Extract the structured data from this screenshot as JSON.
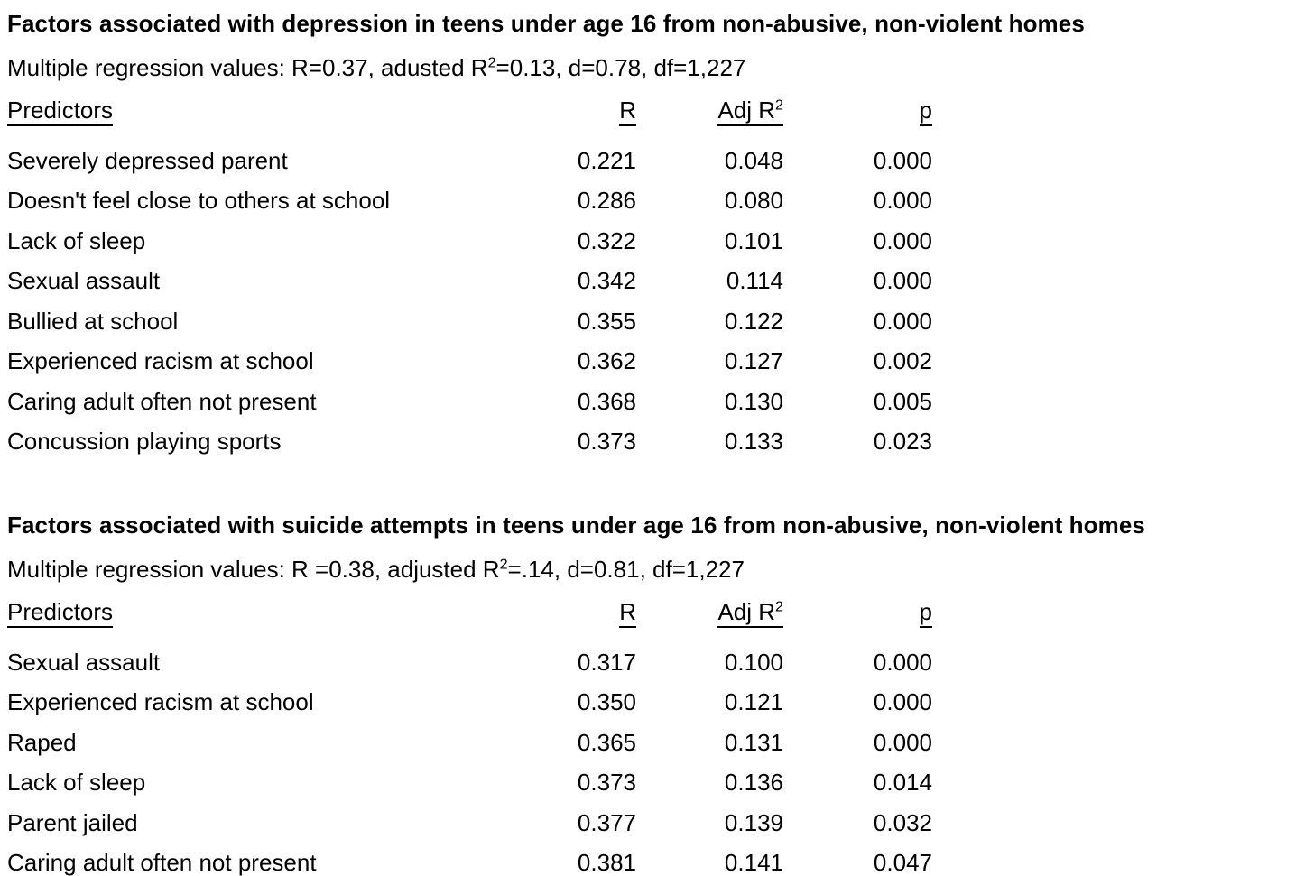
{
  "colors": {
    "background": "#ffffff",
    "text": "#000000"
  },
  "tables": [
    {
      "id": "depression",
      "title": "Factors associated with depression in teens under age 16 from non-abusive, non-violent homes",
      "subtitle": {
        "prefix": "Multiple regression values: R=0.37, adusted R",
        "sup": "2",
        "suffix": "=0.13, d=0.78, df=1,227"
      },
      "columns": {
        "predictors": "Predictors",
        "r": "R",
        "adj_r2_base": "Adj R",
        "adj_r2_sup": "2",
        "p": "p"
      },
      "rows": [
        {
          "predictor": "Severely depressed parent",
          "r": "0.221",
          "adj_r2": "0.048",
          "p": "0.000"
        },
        {
          "predictor": "Doesn't feel close to others at school",
          "r": "0.286",
          "adj_r2": "0.080",
          "p": "0.000"
        },
        {
          "predictor": "Lack of sleep",
          "r": "0.322",
          "adj_r2": "0.101",
          "p": "0.000"
        },
        {
          "predictor": "Sexual assault",
          "r": "0.342",
          "adj_r2": "0.114",
          "p": "0.000"
        },
        {
          "predictor": "Bullied at school",
          "r": "0.355",
          "adj_r2": "0.122",
          "p": "0.000"
        },
        {
          "predictor": "Experienced racism at school",
          "r": "0.362",
          "adj_r2": "0.127",
          "p": "0.002"
        },
        {
          "predictor": "Caring adult often not present",
          "r": "0.368",
          "adj_r2": "0.130",
          "p": "0.005"
        },
        {
          "predictor": "Concussion playing sports",
          "r": "0.373",
          "adj_r2": "0.133",
          "p": "0.023"
        }
      ]
    },
    {
      "id": "suicide-attempts",
      "title": "Factors associated with suicide attempts in teens under age 16 from non-abusive, non-violent homes",
      "subtitle": {
        "prefix": "Multiple regression values: R =0.38, adjusted R",
        "sup": "2",
        "suffix": "=.14, d=0.81, df=1,227"
      },
      "columns": {
        "predictors": "Predictors",
        "r": "R",
        "adj_r2_base": "Adj R",
        "adj_r2_sup": "2",
        "p": "p"
      },
      "rows": [
        {
          "predictor": "Sexual assault",
          "r": "0.317",
          "adj_r2": "0.100",
          "p": "0.000"
        },
        {
          "predictor": "Experienced racism at school",
          "r": "0.350",
          "adj_r2": "0.121",
          "p": "0.000"
        },
        {
          "predictor": "Raped",
          "r": "0.365",
          "adj_r2": "0.131",
          "p": "0.000"
        },
        {
          "predictor": "Lack of sleep",
          "r": "0.373",
          "adj_r2": "0.136",
          "p": "0.014"
        },
        {
          "predictor": "Parent jailed",
          "r": "0.377",
          "adj_r2": "0.139",
          "p": "0.032"
        },
        {
          "predictor": "Caring adult often not present",
          "r": "0.381",
          "adj_r2": "0.141",
          "p": "0.047"
        }
      ]
    }
  ]
}
